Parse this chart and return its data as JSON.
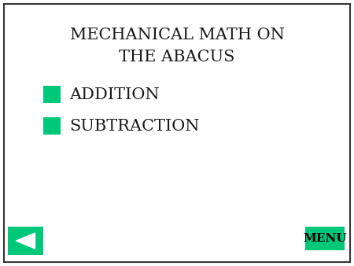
{
  "title_line1": "MECHANICAL MATH ON",
  "title_line2": "THE ABACUS",
  "menu_items": [
    "ADDITION",
    "SUBTRACTION"
  ],
  "bg_color": "#ffffff",
  "border_color": "#333333",
  "green_color": "#00c87a",
  "menu_button_color": "#00c87a",
  "menu_button_text": "MENU",
  "title_fontsize": 15,
  "item_fontsize": 15,
  "menu_fontsize": 11,
  "text_color": "#1a1a1a",
  "font_family": "serif"
}
